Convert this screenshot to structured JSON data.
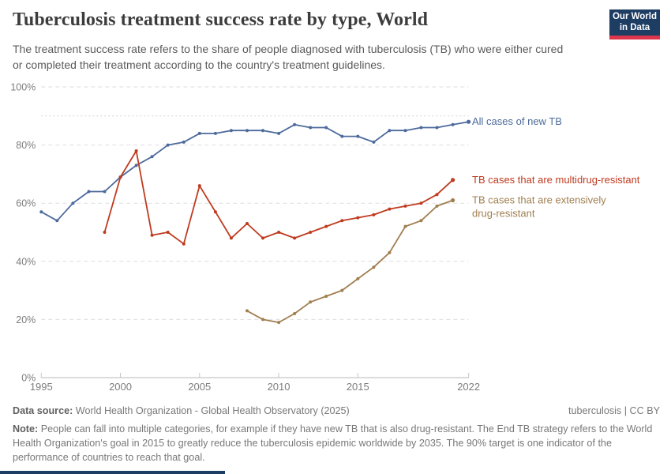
{
  "header": {
    "title": "Tuberculosis treatment success rate by type, World",
    "subtitle": "The treatment success rate refers to the share of people diagnosed with tuberculosis (TB) who were either cured or completed their treatment according to the country's treatment guidelines.",
    "logo": {
      "line1": "Our World",
      "line2": "in Data"
    }
  },
  "chart_data": {
    "type": "line",
    "title": "Tuberculosis treatment success rate by type, World",
    "xlabel": "",
    "ylabel": "",
    "ylim": [
      0,
      100
    ],
    "yticks": [
      0,
      20,
      40,
      60,
      80,
      100
    ],
    "ytick_suffix": "%",
    "xticks": [
      1995,
      2000,
      2005,
      2010,
      2015,
      2022
    ],
    "xlim": [
      1995,
      2022
    ],
    "grid": "dashed-horizontal",
    "target_line": 90,
    "legend_position": "right-of-line-ends",
    "series": [
      {
        "name": "All cases of new TB",
        "label_lines": [
          "All cases of new TB"
        ],
        "color": "#4c6a9c",
        "x": [
          1995,
          1996,
          1997,
          1998,
          1999,
          2000,
          2001,
          2002,
          2003,
          2004,
          2005,
          2006,
          2007,
          2008,
          2009,
          2010,
          2011,
          2012,
          2013,
          2014,
          2015,
          2016,
          2017,
          2018,
          2019,
          2020,
          2021,
          2022
        ],
        "values": [
          57,
          54,
          60,
          64,
          64,
          69,
          73,
          76,
          80,
          81,
          84,
          84,
          85,
          85,
          85,
          84,
          87,
          86,
          86,
          83,
          83,
          81,
          85,
          85,
          86,
          86,
          87,
          88
        ]
      },
      {
        "name": "TB cases that are multidrug-resistant",
        "label_lines": [
          "TB cases that are multidrug-resistant"
        ],
        "color": "#bf3b1f",
        "x": [
          1999,
          2000,
          2001,
          2002,
          2003,
          2004,
          2005,
          2006,
          2007,
          2008,
          2009,
          2010,
          2011,
          2012,
          2013,
          2014,
          2015,
          2016,
          2017,
          2018,
          2019,
          2020,
          2021
        ],
        "values": [
          50,
          69,
          78,
          49,
          50,
          46,
          66,
          57,
          48,
          53,
          48,
          50,
          48,
          50,
          52,
          54,
          55,
          56,
          58,
          59,
          60,
          63,
          68
        ]
      },
      {
        "name": "TB cases that are extensively drug-resistant",
        "label_lines": [
          "TB cases that are extensively",
          "drug-resistant"
        ],
        "color": "#a07f50",
        "x": [
          2008,
          2009,
          2010,
          2011,
          2012,
          2013,
          2014,
          2015,
          2016,
          2017,
          2018,
          2019,
          2020,
          2021
        ],
        "values": [
          23,
          20,
          19,
          22,
          26,
          28,
          30,
          34,
          38,
          43,
          52,
          54,
          59,
          61
        ]
      }
    ]
  },
  "footer": {
    "source_label": "Data source:",
    "source_text": "World Health Organization - Global Health Observatory (2025)",
    "license": "tuberculosis | CC BY",
    "note_label": "Note:",
    "note_text": "People can fall into multiple categories, for example if they have new TB that is also drug-resistant. The End TB strategy refers to the World Health Organization's goal in 2015 to greatly reduce the tuberculosis epidemic worldwide by 2035. The 90% target is one indicator of the performance of countries to reach that goal."
  }
}
